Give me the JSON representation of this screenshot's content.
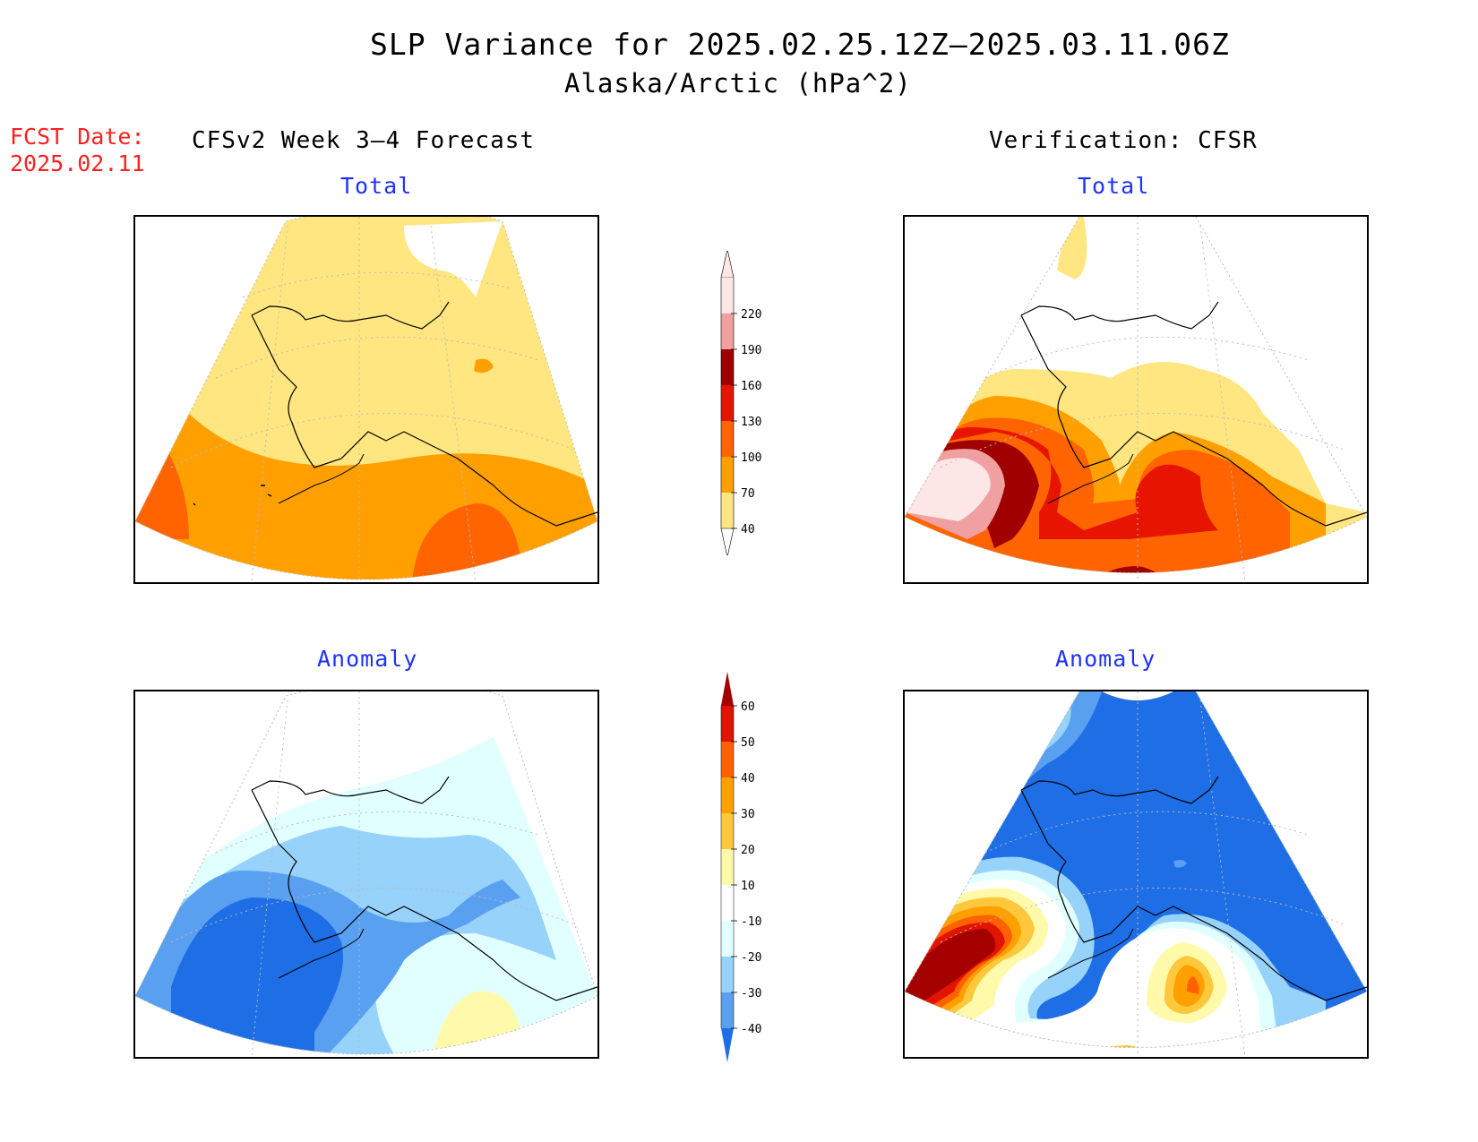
{
  "figure": {
    "title": "SLP Variance for 2025.02.25.12Z—2025.03.11.06Z",
    "subtitle": "Alaska/Arctic (hPa^2)",
    "fcst_label": "FCST Date:",
    "fcst_date": "2025.02.11",
    "left_heading": "CFSv2 Week 3—4 Forecast",
    "right_heading": "Verification: CFSR"
  },
  "panels": {
    "forecast_total": {
      "title": "Total"
    },
    "verification_total": {
      "title": "Total"
    },
    "forecast_anomaly": {
      "title": "Anomaly"
    },
    "verification_anomaly": {
      "title": "Anomaly"
    }
  },
  "colorbars": {
    "total": {
      "levels": [
        "40",
        "70",
        "100",
        "130",
        "160",
        "190",
        "220"
      ],
      "colors": [
        "#ffe680",
        "#ffa000",
        "#ff6400",
        "#e61400",
        "#a00000",
        "#f0a0a0",
        "#fde6e6"
      ],
      "below_color": "#ffffff"
    },
    "anomaly": {
      "levels": [
        "-40",
        "-30",
        "-20",
        "-10",
        "10",
        "20",
        "30",
        "40",
        "50",
        "60"
      ],
      "colors": [
        "#1e6ee6",
        "#5aa0f0",
        "#96d2fa",
        "#e1ffff",
        "#ffffff",
        "#fffaaa",
        "#ffc83c",
        "#ffa000",
        "#ff6000",
        "#e11400",
        "#a50000"
      ]
    }
  }
}
